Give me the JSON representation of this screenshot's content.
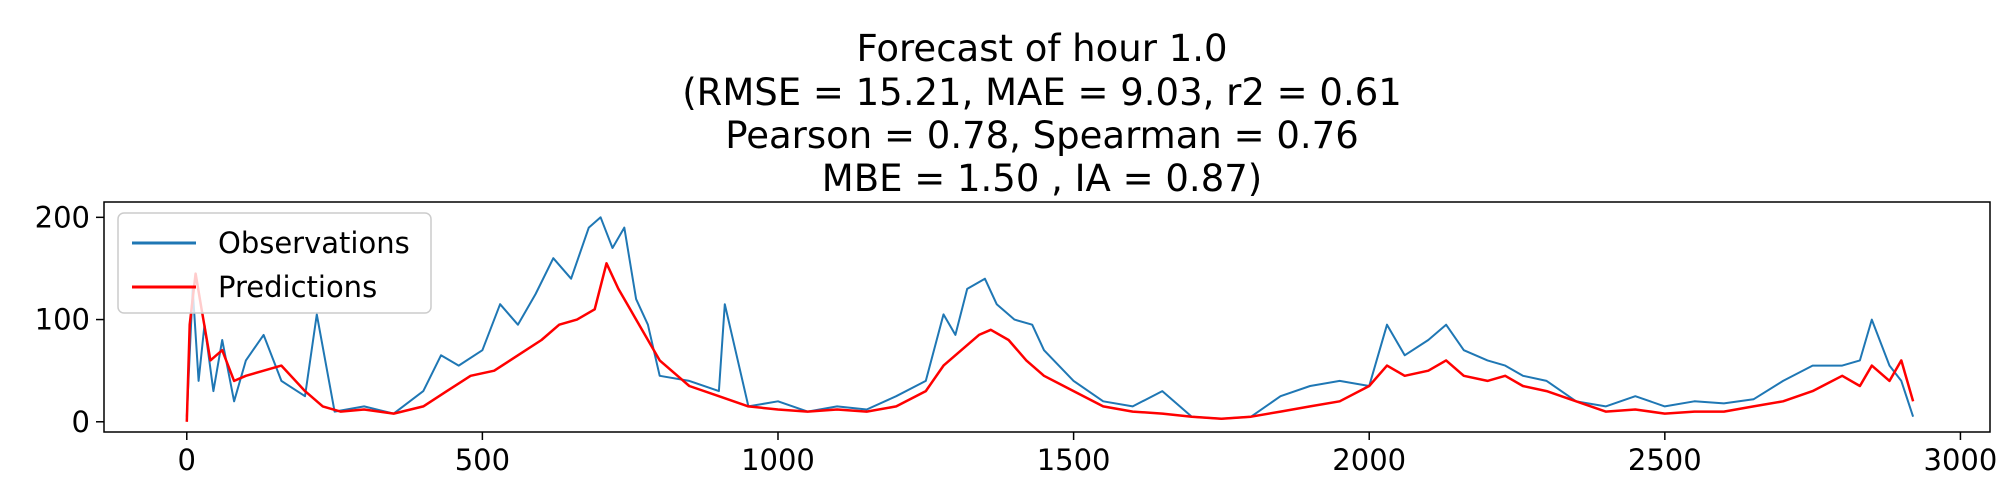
{
  "chart_data": {
    "type": "line",
    "title_lines": [
      "Forecast of hour 1.0",
      "(RMSE = 15.21, MAE = 9.03, r2 = 0.61",
      "Pearson = 0.78, Spearman = 0.76",
      "MBE = 1.50 , IA = 0.87)"
    ],
    "xlabel": "",
    "ylabel": "",
    "xlim": [
      -140,
      3050
    ],
    "ylim": [
      -10,
      215
    ],
    "x_ticks": [
      0,
      500,
      1000,
      1500,
      2000,
      2500,
      3000
    ],
    "y_ticks": [
      0,
      100,
      200
    ],
    "grid": false,
    "legend": {
      "placement": "upper-left",
      "entries": [
        "Observations",
        "Predictions"
      ]
    },
    "series": [
      {
        "name": "Observations",
        "color": "#1f77b4",
        "x": [
          0,
          10,
          20,
          30,
          45,
          60,
          80,
          100,
          130,
          160,
          200,
          220,
          250,
          300,
          350,
          400,
          430,
          460,
          500,
          530,
          560,
          590,
          620,
          650,
          680,
          700,
          720,
          740,
          760,
          780,
          800,
          850,
          900,
          910,
          950,
          1000,
          1050,
          1100,
          1150,
          1200,
          1250,
          1280,
          1300,
          1320,
          1350,
          1370,
          1400,
          1430,
          1450,
          1500,
          1550,
          1600,
          1650,
          1700,
          1750,
          1800,
          1850,
          1900,
          1950,
          2000,
          2030,
          2060,
          2100,
          2130,
          2160,
          2200,
          2230,
          2260,
          2300,
          2350,
          2400,
          2450,
          2500,
          2550,
          2600,
          2650,
          2700,
          2750,
          2800,
          2830,
          2850,
          2880,
          2900,
          2920
        ],
        "y": [
          5,
          130,
          40,
          95,
          30,
          80,
          20,
          60,
          85,
          40,
          25,
          105,
          10,
          15,
          8,
          30,
          65,
          55,
          70,
          115,
          95,
          125,
          160,
          140,
          190,
          200,
          170,
          190,
          120,
          95,
          45,
          40,
          30,
          115,
          15,
          20,
          10,
          15,
          12,
          25,
          40,
          105,
          85,
          130,
          140,
          115,
          100,
          95,
          70,
          40,
          20,
          15,
          30,
          5,
          3,
          5,
          25,
          35,
          40,
          35,
          95,
          65,
          80,
          95,
          70,
          60,
          55,
          45,
          40,
          20,
          15,
          25,
          15,
          20,
          18,
          22,
          40,
          55,
          55,
          60,
          100,
          55,
          40,
          5
        ]
      },
      {
        "name": "Predictions",
        "color": "#ff0000",
        "x": [
          0,
          5,
          15,
          25,
          40,
          60,
          80,
          100,
          130,
          160,
          200,
          230,
          260,
          300,
          350,
          400,
          440,
          480,
          520,
          560,
          600,
          630,
          660,
          690,
          710,
          730,
          750,
          770,
          800,
          850,
          900,
          950,
          1000,
          1050,
          1100,
          1150,
          1200,
          1250,
          1280,
          1310,
          1340,
          1360,
          1390,
          1420,
          1450,
          1500,
          1550,
          1600,
          1650,
          1700,
          1750,
          1800,
          1850,
          1900,
          1950,
          2000,
          2030,
          2060,
          2100,
          2130,
          2160,
          2200,
          2230,
          2260,
          2300,
          2350,
          2400,
          2450,
          2500,
          2550,
          2600,
          2650,
          2700,
          2750,
          2800,
          2830,
          2850,
          2880,
          2900,
          2920
        ],
        "y": [
          0,
          95,
          145,
          110,
          60,
          70,
          40,
          45,
          50,
          55,
          30,
          15,
          10,
          12,
          8,
          15,
          30,
          45,
          50,
          65,
          80,
          95,
          100,
          110,
          155,
          130,
          110,
          90,
          60,
          35,
          25,
          15,
          12,
          10,
          12,
          10,
          15,
          30,
          55,
          70,
          85,
          90,
          80,
          60,
          45,
          30,
          15,
          10,
          8,
          5,
          3,
          5,
          10,
          15,
          20,
          35,
          55,
          45,
          50,
          60,
          45,
          40,
          45,
          35,
          30,
          20,
          10,
          12,
          8,
          10,
          10,
          15,
          20,
          30,
          45,
          35,
          55,
          40,
          60,
          20
        ]
      }
    ]
  }
}
